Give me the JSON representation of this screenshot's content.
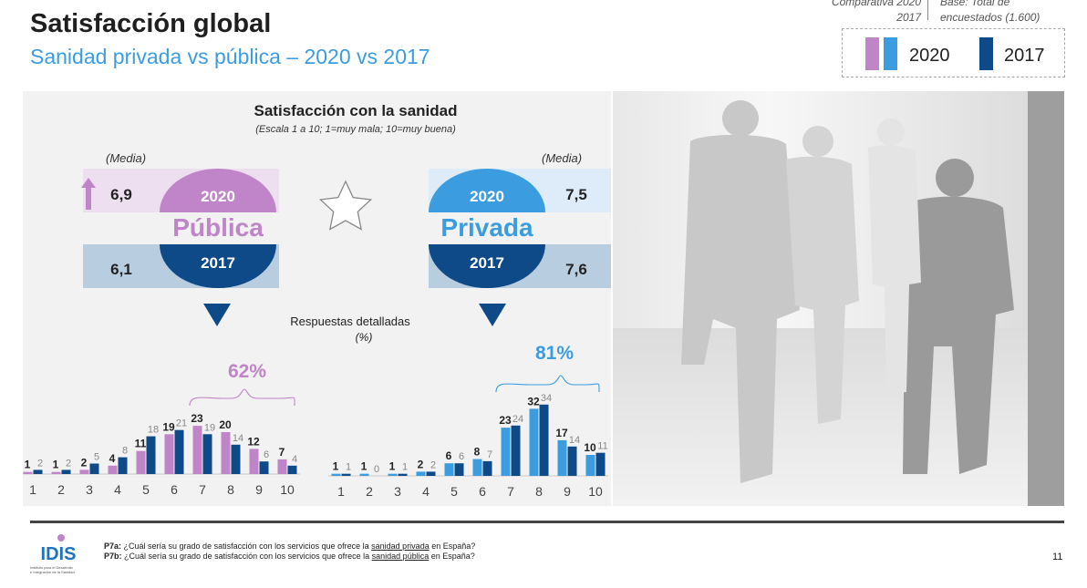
{
  "header": {
    "title": "Satisfacción global",
    "subtitle": "Sanidad privada vs pública – 2020 vs 2017",
    "note_left_line1": "Comparativa 2020",
    "note_left_line2": "2017",
    "note_right_line1": "Base: Total de",
    "note_right_line2": "encuestados (1.600)"
  },
  "legend": {
    "items": [
      {
        "label": "2020",
        "colors": [
          "#c084c8",
          "#3b9de0"
        ]
      },
      {
        "label": "2017",
        "colors": [
          "#0d4a87"
        ]
      }
    ]
  },
  "colors": {
    "publica_2020": "#c084c8",
    "publica_2017": "#0d4a87",
    "privada_2020": "#3b9de0",
    "privada_2017": "#0d4a87",
    "publica_band_2020": "#eddff0",
    "privada_band_2020": "#deecfa",
    "band_2017": "#b8cde0",
    "arrow_up": "#c084c8",
    "triangle": "#0d4a87"
  },
  "panel": {
    "title": "Satisfacción con la sanidad",
    "scale_note": "(Escala 1 a 10; 1=muy mala; 10=muy buena)",
    "media_label": "(Media)",
    "detail_label": "Respuestas detalladas",
    "detail_unit": "(%)",
    "star_icon": "star-outline-icon",
    "arrow_icon": "arrow-up-icon"
  },
  "chart_data": [
    {
      "type": "bar",
      "name": "Pública",
      "categories": [
        "1",
        "2",
        "3",
        "4",
        "5",
        "6",
        "7",
        "8",
        "9",
        "10"
      ],
      "series": [
        {
          "name": "2020",
          "values": [
            1,
            1,
            2,
            4,
            11,
            19,
            23,
            20,
            12,
            7
          ]
        },
        {
          "name": "2017",
          "values": [
            2,
            2,
            5,
            8,
            18,
            21,
            19,
            14,
            6,
            4
          ]
        }
      ],
      "mean_2020": "6,9",
      "mean_2017": "6,1",
      "year_2020": "2020",
      "year_2017": "2017",
      "label": "Pública",
      "bracket_label": "62%",
      "ylim": [
        0,
        40
      ]
    },
    {
      "type": "bar",
      "name": "Privada",
      "categories": [
        "1",
        "2",
        "3",
        "4",
        "5",
        "6",
        "7",
        "8",
        "9",
        "10"
      ],
      "series": [
        {
          "name": "2020",
          "values": [
            1,
            1,
            1,
            2,
            6,
            8,
            23,
            32,
            17,
            10
          ]
        },
        {
          "name": "2017",
          "values": [
            1,
            0,
            1,
            2,
            6,
            7,
            24,
            34,
            14,
            11
          ]
        }
      ],
      "mean_2020": "7,5",
      "mean_2017": "7,6",
      "year_2020": "2020",
      "year_2017": "2017",
      "label": "Privada",
      "bracket_label": "81%",
      "ylim": [
        0,
        40
      ]
    }
  ],
  "footer": {
    "q1_code": "P7a:",
    "q1_pre": " ¿Cuál sería su grado de satisfacción con los servicios que ofrece la ",
    "q1_link": "sanidad privada",
    "q1_post": " en España?",
    "q2_code": "P7b:",
    "q2_pre": " ¿Cuál sería su grado de satisfacción con los servicios que ofrece la ",
    "q2_link": "sanidad pública",
    "q2_post": " en España?",
    "logo_text": "IDIS",
    "logo_caption_1": "Instituto para el Desarrollo",
    "logo_caption_2": "e Integración de la Sanidad",
    "page_number": "11"
  }
}
